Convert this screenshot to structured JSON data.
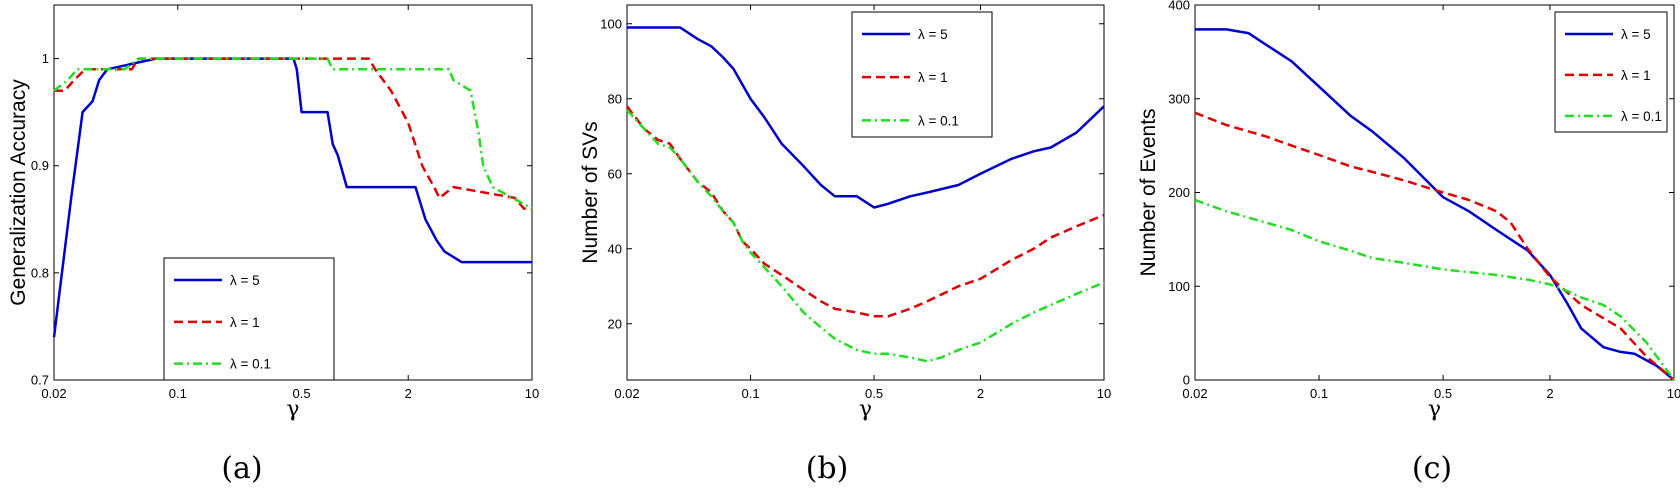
{
  "chart_data": [
    {
      "type": "line",
      "panel": "(a)",
      "xlabel": "γ",
      "ylabel": "Generalization Accuracy",
      "xscale": "log",
      "xlim": [
        0.02,
        10
      ],
      "ylim": [
        0.7,
        1.05
      ],
      "xticks": [
        0.02,
        0.1,
        0.5,
        2,
        10
      ],
      "xtick_labels": [
        "0.02",
        "0.1",
        "0.5",
        "2",
        "10"
      ],
      "yticks": [
        0.7,
        0.8,
        0.9,
        1.0
      ],
      "ytick_labels": [
        "0.7",
        "0.8",
        "0.9",
        "1"
      ],
      "legend_position": "bottom-center",
      "series": [
        {
          "name": "λ = 5",
          "color": "#0000cc",
          "dash": "solid",
          "x": [
            0.02,
            0.025,
            0.029,
            0.033,
            0.036,
            0.04,
            0.075,
            0.45,
            0.47,
            0.5,
            0.7,
            0.75,
            0.8,
            0.9,
            2.2,
            2.5,
            2.9,
            3.2,
            4.0,
            10
          ],
          "y": [
            0.74,
            0.87,
            0.95,
            0.96,
            0.98,
            0.99,
            1.0,
            1.0,
            0.99,
            0.95,
            0.95,
            0.92,
            0.91,
            0.88,
            0.88,
            0.85,
            0.83,
            0.82,
            0.81,
            0.81
          ]
        },
        {
          "name": "λ = 1",
          "color": "#dd0000",
          "dash": "dashed",
          "x": [
            0.02,
            0.023,
            0.026,
            0.03,
            0.055,
            0.06,
            1.2,
            1.3,
            1.6,
            2.0,
            2.4,
            2.8,
            3.0,
            3.6,
            8.0,
            9.0,
            10
          ],
          "y": [
            0.97,
            0.97,
            0.98,
            0.99,
            0.99,
            1.0,
            1.0,
            0.99,
            0.97,
            0.94,
            0.9,
            0.88,
            0.87,
            0.88,
            0.87,
            0.86,
            0.86
          ]
        },
        {
          "name": "λ = 0.1",
          "color": "#22dd22",
          "dash": "dashdot",
          "x": [
            0.02,
            0.024,
            0.027,
            0.05,
            0.06,
            0.7,
            0.75,
            3.4,
            3.6,
            4.5,
            5.0,
            5.3,
            6.0,
            10
          ],
          "y": [
            0.97,
            0.98,
            0.99,
            0.99,
            1.0,
            1.0,
            0.99,
            0.99,
            0.98,
            0.97,
            0.93,
            0.9,
            0.88,
            0.86
          ]
        }
      ]
    },
    {
      "type": "line",
      "panel": "(b)",
      "xlabel": "γ",
      "ylabel": "Number of SVs",
      "xscale": "log",
      "xlim": [
        0.02,
        10
      ],
      "ylim": [
        5,
        105
      ],
      "xticks": [
        0.02,
        0.1,
        0.5,
        2,
        10
      ],
      "xtick_labels": [
        "0.02",
        "0.1",
        "0.5",
        "2",
        "10"
      ],
      "yticks": [
        20,
        40,
        60,
        80,
        100
      ],
      "ytick_labels": [
        "20",
        "40",
        "60",
        "80",
        "100"
      ],
      "legend_position": "top-center",
      "series": [
        {
          "name": "λ = 5",
          "color": "#0000cc",
          "dash": "solid",
          "x": [
            0.02,
            0.04,
            0.05,
            0.06,
            0.07,
            0.08,
            0.1,
            0.12,
            0.15,
            0.2,
            0.25,
            0.3,
            0.4,
            0.5,
            0.6,
            0.8,
            1.0,
            1.5,
            2.0,
            3.0,
            4.0,
            5.0,
            7.0,
            10
          ],
          "y": [
            99,
            99,
            96,
            94,
            91,
            88,
            80,
            75,
            68,
            62,
            57,
            54,
            54,
            51,
            52,
            54,
            55,
            57,
            60,
            64,
            66,
            67,
            71,
            78
          ]
        },
        {
          "name": "λ = 1",
          "color": "#dd0000",
          "dash": "dashed",
          "x": [
            0.02,
            0.025,
            0.03,
            0.035,
            0.04,
            0.05,
            0.06,
            0.07,
            0.08,
            0.09,
            0.1,
            0.12,
            0.15,
            0.2,
            0.25,
            0.3,
            0.4,
            0.5,
            0.6,
            0.8,
            1.0,
            1.5,
            2.0,
            3.0,
            4.0,
            5.0,
            7.0,
            10
          ],
          "y": [
            78,
            72,
            69,
            68,
            64,
            58,
            55,
            50,
            47,
            42,
            40,
            36,
            33,
            29,
            26,
            24,
            23,
            22,
            22,
            24,
            26,
            30,
            32,
            37,
            40,
            43,
            46,
            49
          ]
        },
        {
          "name": "λ = 0.1",
          "color": "#22dd22",
          "dash": "dashdot",
          "x": [
            0.02,
            0.025,
            0.03,
            0.035,
            0.04,
            0.05,
            0.06,
            0.07,
            0.08,
            0.09,
            0.1,
            0.12,
            0.15,
            0.2,
            0.25,
            0.3,
            0.4,
            0.5,
            0.6,
            0.8,
            1.0,
            1.2,
            1.5,
            2.0,
            3.0,
            4.0,
            5.0,
            7.0,
            10
          ],
          "y": [
            77,
            72,
            68,
            67,
            64,
            58,
            54,
            50,
            47,
            42,
            39,
            35,
            30,
            23,
            19,
            16,
            13,
            12,
            12,
            11,
            10,
            11,
            13,
            15,
            20,
            23,
            25,
            28,
            31
          ]
        }
      ]
    },
    {
      "type": "line",
      "panel": "(c)",
      "xlabel": "γ",
      "ylabel": "Number of Events",
      "xscale": "log",
      "xlim": [
        0.02,
        10
      ],
      "ylim": [
        0,
        400
      ],
      "xticks": [
        0.02,
        0.1,
        0.5,
        2,
        10
      ],
      "xtick_labels": [
        "0.02",
        "0.1",
        "0.5",
        "2",
        "10"
      ],
      "yticks": [
        0,
        100,
        200,
        300,
        400
      ],
      "ytick_labels": [
        "0",
        "100",
        "200",
        "300",
        "400"
      ],
      "legend_position": "top-right",
      "series": [
        {
          "name": "λ = 5",
          "color": "#0000cc",
          "dash": "solid",
          "x": [
            0.02,
            0.03,
            0.04,
            0.05,
            0.07,
            0.1,
            0.15,
            0.2,
            0.3,
            0.5,
            0.7,
            1.0,
            1.5,
            2.0,
            2.5,
            3.0,
            4.0,
            5.0,
            6.0,
            8.0,
            10
          ],
          "y": [
            374,
            374,
            370,
            358,
            340,
            313,
            282,
            265,
            237,
            195,
            180,
            160,
            138,
            112,
            82,
            55,
            35,
            30,
            28,
            15,
            0
          ]
        },
        {
          "name": "λ = 1",
          "color": "#dd0000",
          "dash": "dashed",
          "x": [
            0.02,
            0.03,
            0.05,
            0.07,
            0.1,
            0.15,
            0.2,
            0.3,
            0.5,
            0.7,
            1.0,
            1.2,
            1.5,
            2.0,
            3.0,
            5.0,
            7.0,
            10
          ],
          "y": [
            285,
            272,
            260,
            250,
            240,
            228,
            222,
            213,
            200,
            192,
            180,
            168,
            140,
            110,
            80,
            55,
            25,
            0
          ]
        },
        {
          "name": "λ = 0.1",
          "color": "#22dd22",
          "dash": "dashdot",
          "x": [
            0.02,
            0.03,
            0.05,
            0.07,
            0.1,
            0.15,
            0.2,
            0.3,
            0.5,
            0.7,
            1.0,
            1.5,
            2.0,
            2.5,
            3.0,
            4.0,
            5.0,
            7.0,
            10
          ],
          "y": [
            192,
            180,
            168,
            160,
            148,
            138,
            130,
            125,
            118,
            115,
            112,
            107,
            102,
            95,
            88,
            80,
            68,
            40,
            0
          ]
        }
      ]
    }
  ],
  "captions": [
    "(a)",
    "(b)",
    "(c)"
  ]
}
